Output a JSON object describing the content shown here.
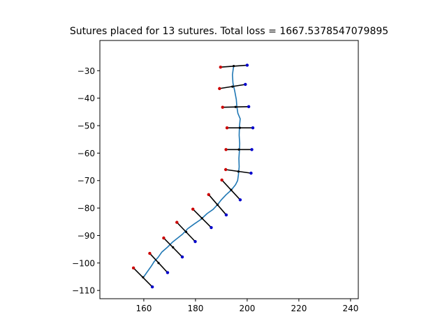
{
  "chart_data": {
    "type": "line",
    "title": "Sutures placed for 13 sutures. Total loss = 1667.5378547079895",
    "xlabel": "",
    "ylabel": "",
    "xlim": [
      143,
      243
    ],
    "ylim": [
      -113,
      -19
    ],
    "x_ticks": [
      160,
      180,
      200,
      220,
      240
    ],
    "y_ticks": [
      -30,
      -40,
      -50,
      -60,
      -70,
      -80,
      -90,
      -100,
      -110
    ],
    "grid": false,
    "legend": "none",
    "colors": {
      "wound": "#1f77b4",
      "suture": "#000000",
      "left_end": "#cc0000",
      "right_end": "#0000cc"
    },
    "series": [
      {
        "kind": "wound-curve",
        "points": [
          [
            194.8,
            -28.0
          ],
          [
            194.3,
            -31.5
          ],
          [
            194.5,
            -34.5
          ],
          [
            195.2,
            -37.5
          ],
          [
            195.8,
            -40.5
          ],
          [
            196.0,
            -43.0
          ],
          [
            196.4,
            -45.5
          ],
          [
            197.3,
            -47.5
          ],
          [
            197.0,
            -50.5
          ],
          [
            196.9,
            -53.5
          ],
          [
            197.1,
            -56.5
          ],
          [
            197.0,
            -59.0
          ],
          [
            196.8,
            -62.0
          ],
          [
            196.9,
            -65.0
          ],
          [
            196.6,
            -68.0
          ],
          [
            196.3,
            -70.0
          ],
          [
            195.5,
            -71.5
          ],
          [
            193.8,
            -73.5
          ],
          [
            191.8,
            -75.2
          ],
          [
            190.0,
            -77.0
          ],
          [
            188.5,
            -78.8
          ],
          [
            186.8,
            -80.5
          ],
          [
            184.5,
            -82.0
          ],
          [
            182.0,
            -84.2
          ],
          [
            179.5,
            -85.8
          ],
          [
            177.0,
            -87.5
          ],
          [
            175.0,
            -89.5
          ],
          [
            173.0,
            -91.0
          ],
          [
            171.0,
            -92.5
          ],
          [
            169.2,
            -94.2
          ],
          [
            167.0,
            -96.0
          ],
          [
            165.5,
            -98.0
          ],
          [
            164.0,
            -99.5
          ],
          [
            163.0,
            -101.0
          ],
          [
            161.5,
            -103.0
          ],
          [
            160.0,
            -105.0
          ]
        ]
      }
    ],
    "sutures": [
      {
        "left": [
          189.7,
          -28.7
        ],
        "center": [
          194.8,
          -28.3
        ],
        "right": [
          200.0,
          -28.0
        ]
      },
      {
        "left": [
          189.3,
          -36.5
        ],
        "center": [
          194.3,
          -35.8
        ],
        "right": [
          199.3,
          -35.0
        ]
      },
      {
        "left": [
          190.5,
          -43.3
        ],
        "center": [
          195.5,
          -43.2
        ],
        "right": [
          200.6,
          -43.1
        ]
      },
      {
        "left": [
          192.2,
          -50.8
        ],
        "center": [
          197.2,
          -50.8
        ],
        "right": [
          202.2,
          -50.8
        ]
      },
      {
        "left": [
          191.8,
          -58.7
        ],
        "center": [
          196.8,
          -58.7
        ],
        "right": [
          201.8,
          -58.7
        ]
      },
      {
        "left": [
          191.7,
          -66.0
        ],
        "center": [
          196.6,
          -66.7
        ],
        "right": [
          201.5,
          -67.3
        ]
      },
      {
        "left": [
          190.2,
          -69.8
        ],
        "center": [
          193.8,
          -73.4
        ],
        "right": [
          197.3,
          -77.0
        ]
      },
      {
        "left": [
          185.1,
          -75.1
        ],
        "center": [
          188.5,
          -78.8
        ],
        "right": [
          191.9,
          -82.5
        ]
      },
      {
        "left": [
          179.0,
          -80.4
        ],
        "center": [
          182.5,
          -83.7
        ],
        "right": [
          186.1,
          -87.1
        ]
      },
      {
        "left": [
          172.8,
          -85.2
        ],
        "center": [
          176.4,
          -88.7
        ],
        "right": [
          179.9,
          -92.2
        ]
      },
      {
        "left": [
          167.7,
          -90.9
        ],
        "center": [
          171.3,
          -94.3
        ],
        "right": [
          174.9,
          -97.8
        ]
      },
      {
        "left": [
          162.3,
          -96.5
        ],
        "center": [
          165.7,
          -100.0
        ],
        "right": [
          169.2,
          -103.5
        ]
      },
      {
        "left": [
          156.0,
          -101.8
        ],
        "center": [
          159.7,
          -105.2
        ],
        "right": [
          163.3,
          -108.7
        ]
      }
    ]
  }
}
